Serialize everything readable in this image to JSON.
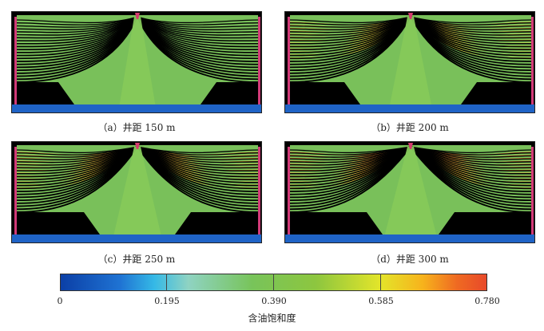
{
  "panels": [
    {
      "id": "a",
      "caption": "（a）井距 150 m",
      "spread": 0.35,
      "warm": 0.0
    },
    {
      "id": "b",
      "caption": "（b）井距 200 m",
      "spread": 0.55,
      "warm": 0.35
    },
    {
      "id": "c",
      "caption": "（c）井距 250 m",
      "spread": 0.75,
      "warm": 0.6
    },
    {
      "id": "d",
      "caption": "（d）井距 300 m",
      "spread": 0.9,
      "warm": 0.85
    }
  ],
  "colorbar": {
    "title": "含油饱和度",
    "ticks": [
      "0",
      "0.195",
      "0.390",
      "0.585",
      "0.780"
    ],
    "colors": {
      "low": "#0b3fa6",
      "mid": "#7cc452",
      "high": "#e84a2a"
    }
  }
}
